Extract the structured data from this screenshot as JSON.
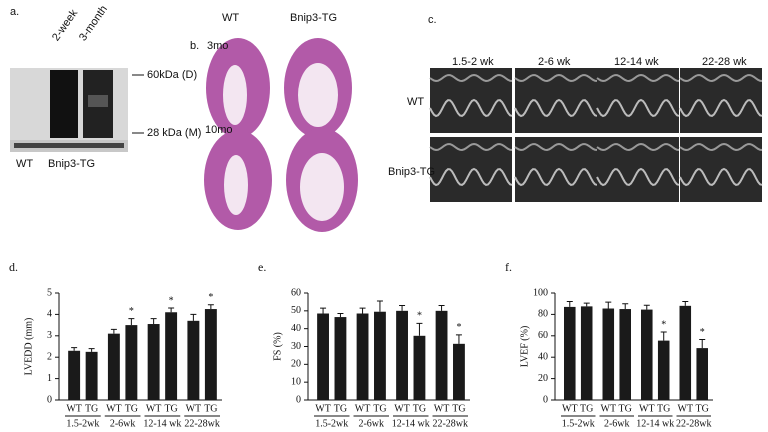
{
  "panels": {
    "a": {
      "label": "a.",
      "lanes": [
        "2-week",
        "3-month"
      ],
      "markers": [
        "60kDa (D)",
        "28 kDa (M)"
      ],
      "groups": [
        "WT",
        "Bnip3-TG"
      ]
    },
    "b": {
      "label": "b.",
      "columns": [
        "WT",
        "Bnip3-TG"
      ],
      "rows": [
        "3mo",
        "10mo"
      ]
    },
    "c": {
      "label": "c.",
      "columns": [
        "1.5-2 wk",
        "2-6 wk",
        "12-14 wk",
        "22-28 wk"
      ],
      "rows": [
        "WT",
        "Bnip3-TG"
      ]
    }
  },
  "chart_data": [
    {
      "type": "bar",
      "panel": "d.",
      "y_label": "LVEDD (mm)",
      "categories": [
        "WT",
        "TG",
        "WT",
        "TG",
        "WT",
        "TG",
        "WT",
        "TG"
      ],
      "groups": [
        "1.5-2wk",
        "2-6wk",
        "12-14 wk",
        "22-28wk"
      ],
      "values": [
        2.3,
        2.25,
        3.1,
        3.5,
        3.55,
        4.1,
        3.7,
        4.25
      ],
      "errors": [
        0.15,
        0.15,
        0.2,
        0.3,
        0.25,
        0.2,
        0.3,
        0.2
      ],
      "significance": [
        null,
        null,
        null,
        "*",
        null,
        "*",
        null,
        "*"
      ],
      "color": "#1a1a1a",
      "ylim": [
        0,
        5
      ],
      "yticks": [
        0,
        1,
        2,
        3,
        4,
        5
      ]
    },
    {
      "type": "bar",
      "panel": "e.",
      "y_label": "FS (%)",
      "categories": [
        "WT",
        "TG",
        "WT",
        "TG",
        "WT",
        "TG",
        "WT",
        "TG"
      ],
      "groups": [
        "1.5-2wk",
        "2-6wk",
        "12-14 wk",
        "22-28wk"
      ],
      "values": [
        48.5,
        46.5,
        48.5,
        49.5,
        50,
        36,
        50,
        31.5
      ],
      "errors": [
        3,
        2,
        3,
        6,
        3,
        7,
        3,
        5
      ],
      "significance": [
        null,
        null,
        null,
        null,
        null,
        "*",
        null,
        "*"
      ],
      "color": "#1a1a1a",
      "ylim": [
        0,
        60
      ],
      "yticks": [
        0,
        10,
        20,
        30,
        40,
        50,
        60
      ]
    },
    {
      "type": "bar",
      "panel": "f.",
      "y_label": "LVEF (%)",
      "categories": [
        "WT",
        "TG",
        "WT",
        "TG",
        "WT",
        "TG",
        "WT",
        "TG"
      ],
      "groups": [
        "1.5-2wk",
        "2-6wk",
        "12-14 wk",
        "22-28wk"
      ],
      "values": [
        87,
        87.5,
        85.5,
        85,
        84.5,
        55.5,
        88,
        48.5
      ],
      "errors": [
        5,
        3,
        6,
        5,
        4,
        8,
        4,
        8
      ],
      "significance": [
        null,
        null,
        null,
        null,
        null,
        "*",
        null,
        "*"
      ],
      "color": "#1a1a1a",
      "ylim": [
        0,
        100
      ],
      "yticks": [
        0,
        20,
        40,
        60,
        80,
        100
      ]
    }
  ]
}
